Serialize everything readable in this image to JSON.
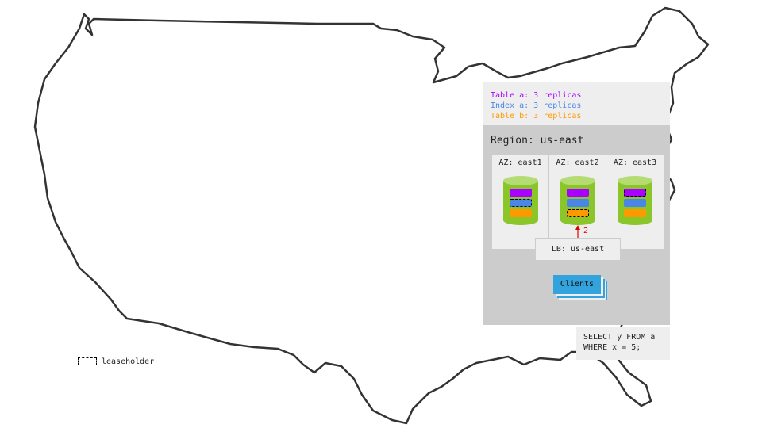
{
  "legend": {
    "lines": [
      {
        "text": "Table a: 3 replicas",
        "color": "#aa00ff"
      },
      {
        "text": "Index a: 3 replicas",
        "color": "#4a86e8"
      },
      {
        "text": "Table b: 3 replicas",
        "color": "#ff9900"
      }
    ]
  },
  "region": {
    "title": "Region: us-east",
    "azs": [
      {
        "label": "AZ: east1",
        "leaseholder": "index-a"
      },
      {
        "label": "AZ: east2",
        "leaseholder": "table-b"
      },
      {
        "label": "AZ: east3",
        "leaseholder": "table-a"
      }
    ],
    "arrow_label": "2",
    "load_balancer": "LB: us-east",
    "clients": "Clients"
  },
  "query": {
    "line1": "SELECT y FROM a",
    "line2": "WHERE x = 5;"
  },
  "key": {
    "leaseholder": "leaseholder"
  },
  "colors": {
    "table_a": "#aa00ff",
    "index_a": "#4a86e8",
    "table_b": "#ff9900",
    "node": "#8ac52a",
    "node_top": "#b5dc73",
    "clients": "#33a3dd",
    "arrow": "#e00000"
  }
}
